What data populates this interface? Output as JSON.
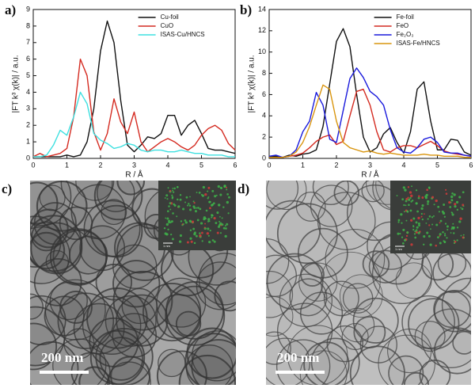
{
  "chart_data": [
    {
      "type": "line",
      "panel": "a)",
      "xlabel": "R / Å",
      "ylabel": "|FT k³ χ(k)| / a.u.",
      "x": [
        0,
        0.2,
        0.4,
        0.6,
        0.8,
        1.0,
        1.2,
        1.4,
        1.6,
        1.8,
        2.0,
        2.2,
        2.4,
        2.6,
        2.8,
        3.0,
        3.2,
        3.4,
        3.6,
        3.8,
        4.0,
        4.2,
        4.4,
        4.6,
        4.8,
        5.0,
        5.2,
        5.4,
        5.6,
        5.8,
        6.0
      ],
      "xlim": [
        0,
        6
      ],
      "xticks": [
        0,
        1,
        2,
        3,
        4,
        5,
        6
      ],
      "ylim": [
        0,
        9
      ],
      "yticks": [
        0,
        1,
        2,
        3,
        4,
        5,
        6,
        7,
        8,
        9
      ],
      "legend": "upper right",
      "series": [
        {
          "name": "Cu-foil",
          "color": "#111111",
          "values": [
            0.1,
            0.1,
            0.1,
            0.1,
            0.1,
            0.2,
            0.1,
            0.2,
            1.0,
            3.0,
            6.5,
            8.3,
            7.0,
            3.5,
            0.8,
            0.4,
            0.8,
            1.3,
            1.2,
            1.5,
            2.6,
            2.6,
            1.4,
            2.0,
            2.3,
            1.5,
            0.6,
            0.5,
            0.5,
            0.4,
            0.3
          ]
        },
        {
          "name": "CuO",
          "color": "#d42a20",
          "values": [
            0.1,
            0.3,
            0.1,
            0.2,
            0.3,
            0.6,
            2.5,
            6.0,
            5.0,
            1.6,
            0.5,
            1.5,
            3.6,
            2.2,
            1.5,
            2.8,
            1.0,
            0.4,
            0.7,
            1.0,
            1.2,
            1.0,
            0.7,
            0.5,
            0.8,
            1.4,
            1.8,
            2.0,
            1.7,
            0.9,
            0.5
          ]
        },
        {
          "name": "ISAS-Cu/HNCS",
          "color": "#3ee0e0",
          "values": [
            0.1,
            0.1,
            0.2,
            0.8,
            1.7,
            1.4,
            2.5,
            4.0,
            3.3,
            1.5,
            1.1,
            0.9,
            0.6,
            0.7,
            0.9,
            0.8,
            0.5,
            0.4,
            0.5,
            0.5,
            0.4,
            0.4,
            0.5,
            0.4,
            0.3,
            0.3,
            0.2,
            0.2,
            0.2,
            0.1,
            0.1
          ]
        }
      ]
    },
    {
      "type": "line",
      "panel": "b)",
      "xlabel": "R / Å",
      "ylabel": "|FT k³ χ(k)| / a.u.",
      "x": [
        0,
        0.2,
        0.4,
        0.6,
        0.8,
        1.0,
        1.2,
        1.4,
        1.6,
        1.8,
        2.0,
        2.2,
        2.4,
        2.6,
        2.8,
        3.0,
        3.2,
        3.4,
        3.6,
        3.8,
        4.0,
        4.2,
        4.4,
        4.6,
        4.8,
        5.0,
        5.2,
        5.4,
        5.6,
        5.8,
        6.0
      ],
      "xlim": [
        0,
        6
      ],
      "xticks": [
        0,
        1,
        2,
        3,
        4,
        5,
        6
      ],
      "ylim": [
        0,
        14
      ],
      "yticks": [
        0,
        2,
        4,
        6,
        8,
        10,
        12,
        14
      ],
      "legend": "upper right",
      "series": [
        {
          "name": "Fe-foil",
          "color": "#111111",
          "values": [
            0.2,
            0.2,
            0.1,
            0.3,
            0.2,
            0.4,
            0.5,
            0.8,
            3.0,
            7.0,
            11.0,
            12.2,
            10.5,
            6.0,
            2.0,
            0.6,
            1.0,
            2.3,
            2.9,
            1.5,
            0.5,
            2.5,
            6.5,
            7.2,
            3.5,
            0.8,
            0.8,
            1.8,
            1.7,
            0.6,
            0.3
          ]
        },
        {
          "name": "FeO",
          "color": "#d42a20",
          "values": [
            0.1,
            0.1,
            0.1,
            0.2,
            0.3,
            0.5,
            1.0,
            1.6,
            2.0,
            2.2,
            1.3,
            1.6,
            4.0,
            6.3,
            6.5,
            5.0,
            2.5,
            0.8,
            0.6,
            1.0,
            1.2,
            1.2,
            1.0,
            1.3,
            1.6,
            1.2,
            0.7,
            0.5,
            0.4,
            0.3,
            0.2
          ]
        },
        {
          "name": "Fe₂O₃",
          "color": "#1a1adc",
          "values": [
            0.2,
            0.3,
            0.1,
            0.2,
            0.8,
            2.5,
            3.5,
            6.2,
            5.0,
            1.8,
            1.5,
            4.5,
            7.5,
            8.5,
            7.6,
            6.3,
            5.8,
            5.0,
            2.7,
            1.0,
            0.6,
            0.5,
            1.0,
            1.8,
            2.0,
            1.5,
            0.6,
            0.5,
            0.5,
            0.3,
            0.2
          ]
        },
        {
          "name": "ISAS-Fe/HNCS",
          "color": "#d9950e",
          "values": [
            0.1,
            0.1,
            0.1,
            0.2,
            0.6,
            1.5,
            3.0,
            5.0,
            6.9,
            6.5,
            3.5,
            1.5,
            1.0,
            0.8,
            0.6,
            0.7,
            0.5,
            0.4,
            0.5,
            0.4,
            0.3,
            0.3,
            0.3,
            0.4,
            0.3,
            0.3,
            0.2,
            0.2,
            0.2,
            0.1,
            0.1
          ]
        }
      ]
    }
  ],
  "images": [
    {
      "panel": "c)",
      "scale_bar": "200 nm",
      "inset_scale": "1 nm"
    },
    {
      "panel": "d)",
      "scale_bar": "200 nm",
      "inset_scale": "1 nm"
    }
  ]
}
